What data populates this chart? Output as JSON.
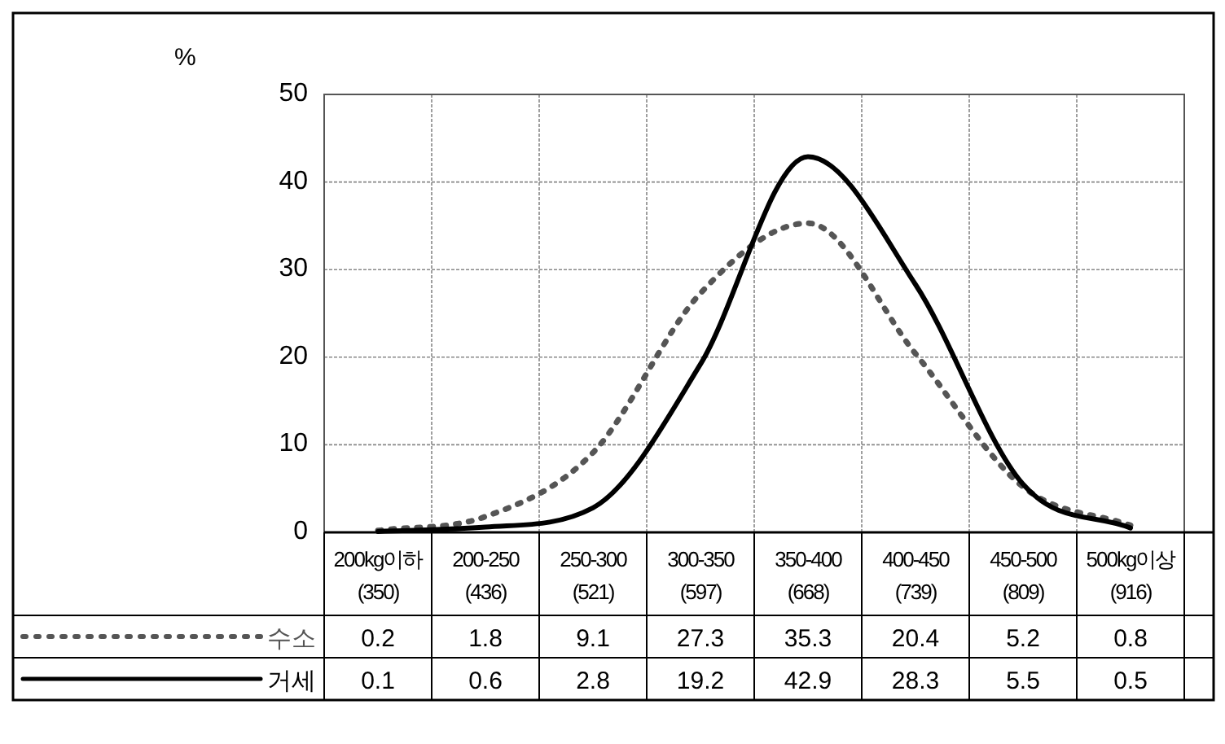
{
  "chart_data": {
    "type": "line",
    "ylabel": "%",
    "categories": [
      "200kg이하\n(350)",
      "200-250\n(436)",
      "250-300\n(521)",
      "300-350\n(597)",
      "350-400\n(668)",
      "400-450\n(739)",
      "450-500\n(809)",
      "500kg이상\n(916)"
    ],
    "series": [
      {
        "name": "수소",
        "color": "#555555",
        "line_style": "dotted",
        "values": [
          0.2,
          1.8,
          9.1,
          27.3,
          35.3,
          20.4,
          5.2,
          0.8
        ]
      },
      {
        "name": "거세",
        "color": "#000000",
        "line_style": "solid",
        "values": [
          0.1,
          0.6,
          2.8,
          19.2,
          42.9,
          28.3,
          5.5,
          0.5
        ]
      }
    ],
    "ylim": [
      0,
      50
    ],
    "yticks": [
      0,
      10,
      20,
      30,
      40,
      50
    ],
    "grid": true,
    "data_labels": true,
    "legend": "bottom"
  }
}
